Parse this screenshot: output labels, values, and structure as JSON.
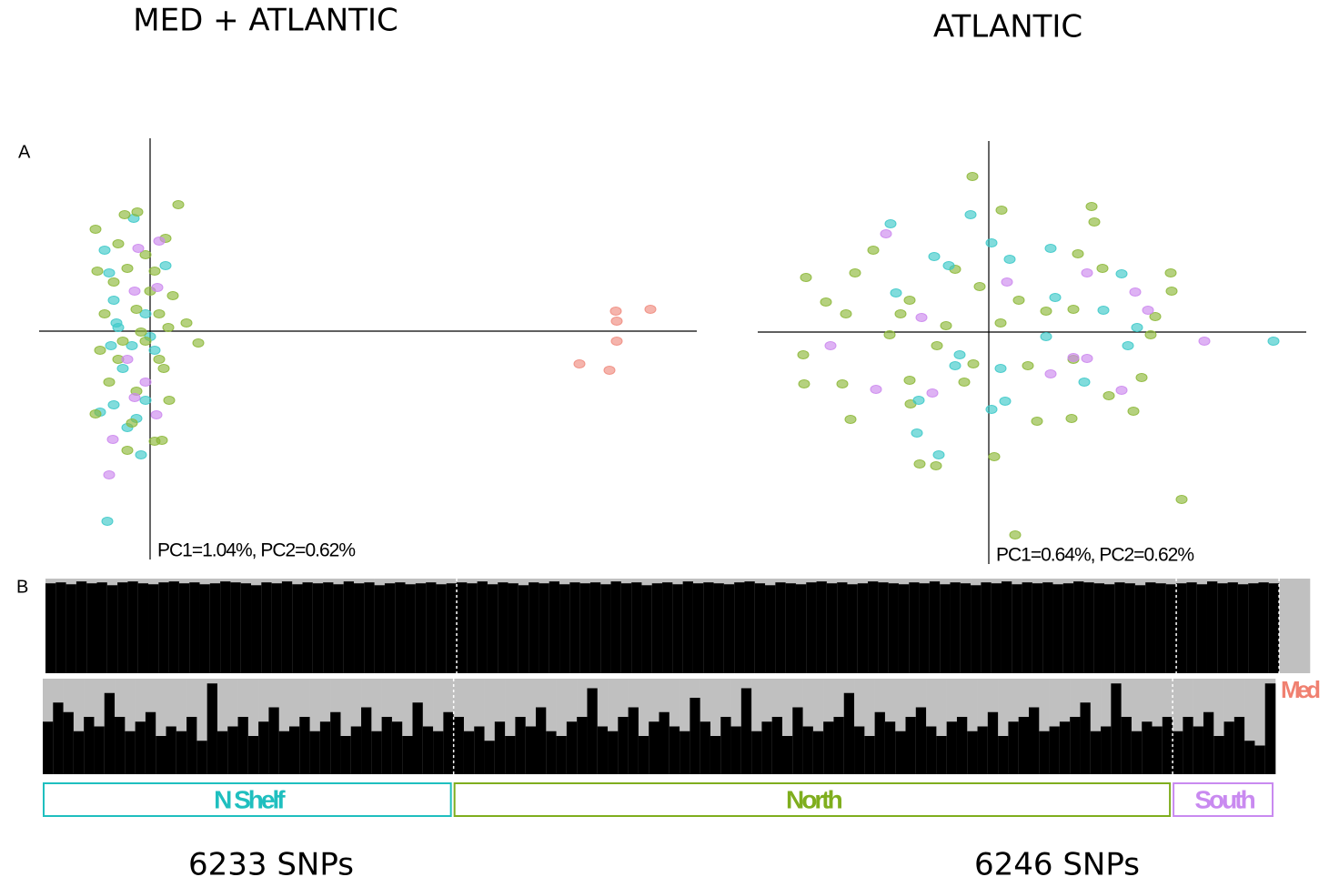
{
  "figure": {
    "titles": [
      "MED + ATLANTIC",
      "ATLANTIC"
    ],
    "panel_labels": [
      "A",
      "B"
    ],
    "snp_counts": [
      "6233 SNPs",
      "6246 SNPs"
    ]
  },
  "chart_data": [
    {
      "type": "scatter",
      "annotation": "PC1=1.04%, PC2=0.62%",
      "xlim": [
        -12.2,
        60.1
      ],
      "ylim": [
        -25.1,
        21.2
      ],
      "series": [
        {
          "color": "#3ec9c9",
          "x": [
            -4.7,
            -1.8,
            -5,
            -4.5,
            -4,
            -3.5,
            -4.3,
            -3,
            -4,
            -5.5,
            -1.5,
            -2.5,
            -0.5,
            1.7,
            -0.5,
            -2,
            0.5,
            -1,
            0,
            -3.7
          ],
          "y": [
            -20.9,
            12.4,
            8.9,
            6.4,
            3.4,
            0.4,
            -1.6,
            -4.1,
            -8.1,
            -8.9,
            -9.6,
            -10.6,
            -7.6,
            7.2,
            1.9,
            -1.6,
            -2.1,
            -13.6,
            -0.6,
            0.9
          ]
        },
        {
          "color": "#8db83a",
          "x": [
            3.1,
            -2.8,
            -1.4,
            -6,
            1.7,
            -3.5,
            -0.5,
            -5.8,
            -2.5,
            0.5,
            2.5,
            -5,
            -1.5,
            1,
            4,
            5.3,
            -5.5,
            -1,
            -0.5,
            2,
            -3.5,
            1.5,
            -4.5,
            -1.5,
            2.1,
            -6,
            -2,
            0.5,
            -2.5,
            1.3,
            0,
            -4,
            -3,
            1
          ],
          "y": [
            13.9,
            12.8,
            13.1,
            11.2,
            10.2,
            9.6,
            8.4,
            6.6,
            6.9,
            6.6,
            3.9,
            1.9,
            2.4,
            1.9,
            0.9,
            -1.3,
            -2.1,
            -0.1,
            -1.1,
            0.4,
            -3.1,
            -4.1,
            -5.6,
            -6.6,
            -7.6,
            -9.1,
            -10.1,
            -12.1,
            -13.1,
            -12,
            4.4,
            5.4,
            -1.1,
            -3.1
          ]
        },
        {
          "color": "#cc88ee",
          "x": [
            -1.3,
            1,
            -1.7,
            0.8,
            -0.5,
            -1.7,
            0.7,
            -4.1,
            -4.5,
            -2.5
          ],
          "y": [
            9.1,
            9.9,
            4.4,
            4.8,
            -5.6,
            -7.3,
            -9.2,
            -11.9,
            -15.8,
            -3.1
          ]
        },
        {
          "color": "#f08c80",
          "x": [
            51.2,
            55,
            51.3,
            51.3,
            47.2,
            50.5
          ],
          "y": [
            2.2,
            2.4,
            1.1,
            -1.1,
            -3.6,
            -4.3
          ]
        }
      ]
    },
    {
      "type": "scatter",
      "annotation": "PC1=0.64%, PC2=0.62%",
      "xlim": [
        -25.4,
        34.9
      ],
      "ylim": [
        -25.5,
        21.0
      ],
      "series": [
        {
          "color": "#8db83a",
          "x": [
            -1.8,
            1.4,
            11.3,
            11.6,
            -12.7,
            9.8,
            -14.7,
            -3.7,
            12.5,
            20,
            -20.1,
            -17.9,
            20.1,
            18.3,
            -15.7,
            -9.7,
            -4.7,
            1.3,
            6.3,
            9.3,
            17.8,
            -20.4,
            -10.9,
            -5.7,
            -1.7,
            4.3,
            9.3,
            16.8,
            -20.3,
            -16.1,
            -8.7,
            -2.7,
            5.3,
            9.1,
            -15.2,
            -8.6,
            13.2,
            15.9,
            -7.6,
            -5.8,
            0.6,
            21.2,
            2.9,
            3.3,
            -8.7,
            -1
          ],
          "y": [
            17.1,
            13.4,
            13.8,
            12.1,
            9,
            8.6,
            6.5,
            6.9,
            7,
            6.5,
            6,
            3.3,
            4.5,
            1.7,
            2,
            2,
            0.7,
            1,
            2.3,
            2.5,
            -0.3,
            -2.5,
            -0.3,
            -1.5,
            -3.5,
            -3.7,
            -3,
            -5,
            -5.7,
            -5.7,
            -5.3,
            -5.5,
            -9.8,
            -9.5,
            -9.6,
            -7.9,
            -7,
            -8.7,
            -14.5,
            -14.7,
            -13.7,
            -18.4,
            -22.3,
            3.5,
            3.5,
            5
          ]
        },
        {
          "color": "#3ec9c9",
          "x": [
            -10.8,
            -2,
            6.8,
            -6,
            0.3,
            -4.4,
            14.6,
            2.3,
            -10.2,
            7.3,
            12.6,
            16.3,
            31.3,
            15.3,
            6.3,
            -3.7,
            1.3,
            1.8,
            0.3,
            -7.7,
            -7.9,
            -5.5,
            10.5,
            -3.2
          ],
          "y": [
            11.9,
            12.9,
            9.2,
            8.3,
            9.8,
            7.3,
            6.4,
            8,
            4.3,
            3.8,
            2.4,
            0.5,
            -1,
            -1.5,
            -0.5,
            -3.7,
            -4,
            -7.6,
            -8.5,
            -7.5,
            -11.1,
            -13.5,
            -5.5,
            -2.5
          ]
        },
        {
          "color": "#cc88ee",
          "x": [
            -11.3,
            10.8,
            16.1,
            17.5,
            23.7,
            -17.4,
            -7.4,
            9.3,
            10.8,
            6.8,
            14.6,
            -12.4,
            -6.2,
            2
          ],
          "y": [
            10.8,
            6.5,
            4.4,
            2.4,
            -1,
            -1.5,
            1.6,
            -2.8,
            -2.9,
            -4.6,
            -6.4,
            -6.3,
            -6.7,
            5.5
          ]
        }
      ]
    },
    {
      "type": "bar",
      "ylim": [
        0,
        1
      ],
      "fill_color": "#000000",
      "background_color": "#c0c0c0",
      "series": [
        {
          "name": "N Shelf",
          "color": "#1fbfbf",
          "values": [
            0.95,
            0.96,
            0.94,
            0.97,
            0.95,
            0.96,
            0.93,
            0.96,
            0.97,
            0.95,
            0.94,
            0.96,
            0.97,
            0.95,
            0.96,
            0.94,
            0.95,
            0.97,
            0.96,
            0.95,
            0.93,
            0.96,
            0.95,
            0.97,
            0.94,
            0.96,
            0.95,
            0.96,
            0.94,
            0.97,
            0.95,
            0.96,
            0.93,
            0.95,
            0.96,
            0.94,
            0.95,
            0.96,
            0.94,
            0.95
          ]
        },
        {
          "name": "North",
          "color": "#7fae1e",
          "values": [
            0.96,
            0.95,
            0.97,
            0.94,
            0.96,
            0.95,
            0.93,
            0.96,
            0.95,
            0.97,
            0.94,
            0.96,
            0.95,
            0.96,
            0.94,
            0.97,
            0.95,
            0.96,
            0.93,
            0.95,
            0.96,
            0.94,
            0.97,
            0.95,
            0.96,
            0.95,
            0.94,
            0.96,
            0.97,
            0.95,
            0.93,
            0.96,
            0.95,
            0.94,
            0.96,
            0.97,
            0.95,
            0.96,
            0.94,
            0.95,
            0.97,
            0.96,
            0.95,
            0.94,
            0.96,
            0.95,
            0.97,
            0.94,
            0.96,
            0.95,
            0.93,
            0.96,
            0.95,
            0.97,
            0.94,
            0.96,
            0.95,
            0.96,
            0.94,
            0.95,
            0.97,
            0.96,
            0.95,
            0.94,
            0.96,
            0.95,
            0.93,
            0.96,
            0.95,
            0.94
          ]
        },
        {
          "name": "South",
          "color": "#c98af0",
          "values": [
            0.95,
            0.96,
            0.94,
            0.97,
            0.95,
            0.96,
            0.94,
            0.95,
            0.96,
            0.95
          ]
        },
        {
          "name": "Med",
          "color": "#f08070",
          "values": [
            0,
            0,
            0
          ]
        }
      ]
    },
    {
      "type": "bar",
      "ylim": [
        0,
        1
      ],
      "fill_color": "#000000",
      "background_color": "#c0c0c0",
      "series": [
        {
          "values": [
            0.55,
            0.75,
            0.65,
            0.45,
            0.6,
            0.5,
            0.85,
            0.6,
            0.45,
            0.55,
            0.65,
            0.4,
            0.5,
            0.45,
            0.6,
            0.35,
            0.95,
            0.45,
            0.5,
            0.6,
            0.4,
            0.55,
            0.7,
            0.45,
            0.5,
            0.6,
            0.45,
            0.55,
            0.65,
            0.4,
            0.5,
            0.7,
            0.45,
            0.6,
            0.55,
            0.4,
            0.75,
            0.5,
            0.45,
            0.65
          ]
        },
        {
          "values": [
            0.6,
            0.45,
            0.5,
            0.35,
            0.55,
            0.4,
            0.6,
            0.5,
            0.7,
            0.45,
            0.4,
            0.55,
            0.6,
            0.9,
            0.5,
            0.45,
            0.6,
            0.7,
            0.4,
            0.55,
            0.65,
            0.5,
            0.45,
            0.8,
            0.55,
            0.4,
            0.6,
            0.5,
            0.9,
            0.45,
            0.55,
            0.6,
            0.4,
            0.7,
            0.5,
            0.45,
            0.55,
            0.6,
            0.85,
            0.5,
            0.4,
            0.65,
            0.55,
            0.45,
            0.6,
            0.7,
            0.5,
            0.4,
            0.55,
            0.6,
            0.45,
            0.5,
            0.65,
            0.4,
            0.55,
            0.6,
            0.7,
            0.45,
            0.5,
            0.55,
            0.6,
            0.75,
            0.45,
            0.5,
            0.95,
            0.6,
            0.45,
            0.55,
            0.5,
            0.6
          ]
        },
        {
          "values": [
            0.45,
            0.6,
            0.5,
            0.65,
            0.4,
            0.55,
            0.6,
            0.35,
            0.3,
            0.95
          ]
        }
      ]
    }
  ]
}
